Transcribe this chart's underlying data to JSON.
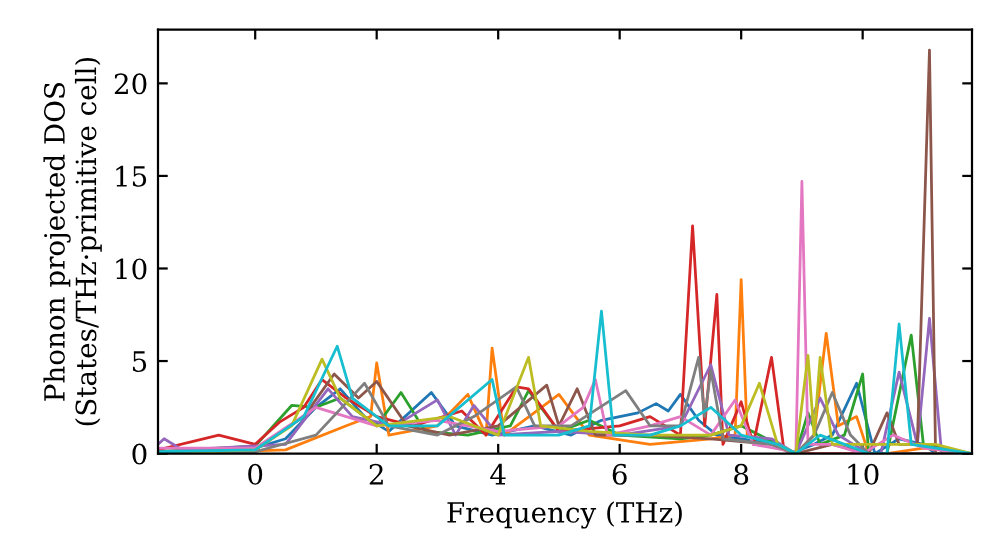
{
  "chart_data": {
    "type": "line",
    "xlabel": "Frequency (THz)",
    "ylabel": "Phonon projected DOS\n(States/THz·primitive cell)",
    "xlim": [
      -1.6,
      11.8
    ],
    "ylim": [
      0,
      22.9
    ],
    "xticks": [
      0,
      2,
      4,
      6,
      8,
      10
    ],
    "yticks": [
      0,
      5,
      10,
      15,
      20
    ],
    "grid": false,
    "legend": false,
    "marker": "none",
    "line_style": "solid",
    "series": [
      {
        "color": "#1f77b4",
        "x": [
          -1.6,
          0,
          0.5,
          1.0,
          1.4,
          1.8,
          2.2,
          2.9,
          3.3,
          3.9,
          4.6,
          5.2,
          5.7,
          6.3,
          6.6,
          6.8,
          7.0,
          7.3,
          7.6,
          8.0,
          8.6,
          8.8,
          9.2,
          9.5,
          9.9,
          10.2,
          10.6,
          11.0,
          11.2,
          11.8
        ],
        "values": [
          0.1,
          0.3,
          0.8,
          2.5,
          3.5,
          2.0,
          1.2,
          3.3,
          1.5,
          1.0,
          1.5,
          1.0,
          1.8,
          2.2,
          2.7,
          2.3,
          3.2,
          1.8,
          1.0,
          0.8,
          0.5,
          0,
          0.5,
          1.0,
          3.8,
          0,
          0.8,
          0.5,
          0,
          0
        ]
      },
      {
        "color": "#ff7f0e",
        "x": [
          -1.6,
          0.5,
          1.5,
          1.9,
          2.0,
          2.2,
          3.0,
          3.5,
          3.8,
          3.9,
          4.1,
          5.0,
          5.5,
          6.5,
          7.5,
          7.9,
          8.0,
          8.1,
          8.5,
          8.7,
          8.9,
          9.2,
          9.4,
          9.6,
          9.9,
          10.1,
          10.4,
          11.0,
          11.8
        ],
        "values": [
          0,
          0.2,
          1.5,
          2.0,
          4.9,
          1.0,
          1.5,
          3.2,
          1.0,
          5.7,
          1.0,
          3.2,
          1.0,
          0.5,
          0.8,
          1.0,
          9.4,
          1.0,
          0.6,
          0.2,
          0,
          1.0,
          6.5,
          1.5,
          2.0,
          0,
          0,
          0.3,
          0
        ]
      },
      {
        "color": "#2ca02c",
        "x": [
          -1.6,
          0,
          0.6,
          1.0,
          1.4,
          2.0,
          2.4,
          2.8,
          3.5,
          4.2,
          4.5,
          5.0,
          5.5,
          6.0,
          7.0,
          7.5,
          8.0,
          8.6,
          8.9,
          9.1,
          9.3,
          9.7,
          10.0,
          10.1,
          10.4,
          10.8,
          11.0,
          11.8
        ],
        "values": [
          0.1,
          0.4,
          2.6,
          2.5,
          3.0,
          1.5,
          3.3,
          1.2,
          1.0,
          1.5,
          3.4,
          1.2,
          1.8,
          1.0,
          0.8,
          1.0,
          1.5,
          0.5,
          0,
          2.2,
          0.5,
          1.0,
          4.3,
          0,
          0,
          6.4,
          0.5,
          0
        ]
      },
      {
        "color": "#d62728",
        "x": [
          -1.6,
          -0.6,
          0,
          0.4,
          0.8,
          1.1,
          1.5,
          2.0,
          2.6,
          3.4,
          3.8,
          4.3,
          4.5,
          5.0,
          6.0,
          6.5,
          7.0,
          7.2,
          7.4,
          7.6,
          7.7,
          8.0,
          8.2,
          8.5,
          8.7,
          8.9,
          11.8
        ],
        "values": [
          0.2,
          1.0,
          0.5,
          1.7,
          2.5,
          4.0,
          3.0,
          2.0,
          1.5,
          2.3,
          1.0,
          3.6,
          3.5,
          1.2,
          1.5,
          2.0,
          1.0,
          12.3,
          1.5,
          8.6,
          0.5,
          2.8,
          0.5,
          5.2,
          0.3,
          0,
          0
        ]
      },
      {
        "color": "#9467bd",
        "x": [
          -1.6,
          -1.5,
          -1.2,
          0.5,
          1.2,
          1.6,
          2.3,
          3.0,
          3.3,
          3.6,
          4.0,
          5.0,
          6.0,
          7.0,
          7.5,
          7.8,
          8.5,
          8.9,
          9.3,
          9.6,
          10.1,
          10.3,
          10.6,
          10.9,
          11.1,
          11.3,
          11.8
        ],
        "values": [
          0.5,
          0.8,
          0.2,
          0.5,
          3.5,
          2.0,
          1.5,
          2.9,
          1.0,
          2.6,
          1.0,
          1.2,
          1.0,
          1.5,
          4.8,
          1.0,
          0.8,
          0,
          3.0,
          1.0,
          0,
          0,
          4.4,
          0.5,
          7.3,
          0,
          0
        ]
      },
      {
        "color": "#8c564b",
        "x": [
          -1.6,
          0,
          0.8,
          1.3,
          1.7,
          2.0,
          2.5,
          3.2,
          4.0,
          4.8,
          5.0,
          5.3,
          5.6,
          6.5,
          7.5,
          8.5,
          8.9,
          9.5,
          10.1,
          10.4,
          10.6,
          10.9,
          11.1,
          11.2,
          11.8
        ],
        "values": [
          0,
          0.2,
          2.0,
          4.3,
          3.0,
          3.9,
          1.5,
          1.0,
          1.5,
          3.7,
          1.5,
          3.5,
          1.0,
          1.0,
          0.8,
          0.5,
          0,
          0.5,
          0,
          2.2,
          0.5,
          0.5,
          21.8,
          0,
          0
        ]
      },
      {
        "color": "#e377c2",
        "x": [
          -1.6,
          0,
          1.0,
          2.0,
          3.0,
          4.0,
          5.0,
          5.4,
          5.6,
          5.8,
          6.5,
          7.0,
          7.5,
          7.9,
          8.2,
          8.7,
          8.9,
          9.0,
          9.1,
          9.5,
          10.0,
          10.5,
          11.0,
          11.8
        ],
        "values": [
          0.3,
          0.3,
          2.5,
          1.5,
          1.8,
          1.2,
          1.5,
          2.5,
          4.0,
          1.0,
          1.5,
          2.0,
          1.0,
          2.9,
          0.5,
          0.2,
          0,
          14.7,
          0.5,
          0.5,
          0,
          1.0,
          0.3,
          0
        ]
      },
      {
        "color": "#7f7f7f",
        "x": [
          -1.6,
          0,
          1.0,
          1.8,
          2.2,
          3.0,
          3.6,
          4.3,
          4.6,
          5.2,
          6.1,
          6.5,
          7.0,
          7.3,
          7.4,
          7.5,
          7.7,
          8.5,
          8.9,
          9.2,
          9.5,
          9.8,
          10.1,
          11.8
        ],
        "values": [
          0,
          0.1,
          1.0,
          3.8,
          1.5,
          1.0,
          2.0,
          3.6,
          1.5,
          1.5,
          3.4,
          1.5,
          1.5,
          5.2,
          2.0,
          4.5,
          0.8,
          0.5,
          0,
          1.0,
          3.3,
          1.0,
          0,
          0
        ]
      },
      {
        "color": "#bcbd22",
        "x": [
          -1.6,
          0,
          0.6,
          1.1,
          1.4,
          2.0,
          3.2,
          4.0,
          4.5,
          4.7,
          5.5,
          6.5,
          7.5,
          8.0,
          8.3,
          8.6,
          8.9,
          9.1,
          9.2,
          9.3,
          9.5,
          10.0,
          11.0,
          11.2,
          11.8
        ],
        "values": [
          0,
          0.2,
          1.5,
          5.1,
          3.0,
          1.5,
          2.0,
          1.0,
          5.2,
          1.5,
          1.2,
          1.0,
          1.0,
          1.5,
          3.8,
          0.5,
          0,
          5.3,
          1.0,
          5.2,
          0.5,
          0.5,
          0.5,
          0.5,
          0
        ]
      },
      {
        "color": "#17becf",
        "x": [
          -1.6,
          0,
          0.8,
          1.35,
          1.6,
          2.2,
          3.0,
          3.9,
          4.1,
          5.0,
          5.5,
          5.7,
          5.9,
          6.5,
          7.0,
          7.5,
          8.0,
          8.6,
          8.9,
          9.3,
          10.1,
          10.4,
          10.6,
          10.8,
          11.8
        ],
        "values": [
          0.1,
          0.2,
          2.0,
          5.8,
          3.0,
          1.5,
          1.5,
          4.0,
          1.0,
          1.0,
          1.5,
          7.7,
          1.0,
          1.0,
          1.5,
          2.5,
          1.0,
          0.5,
          0,
          1.0,
          0,
          0,
          7.0,
          0.5,
          0
        ]
      }
    ]
  }
}
